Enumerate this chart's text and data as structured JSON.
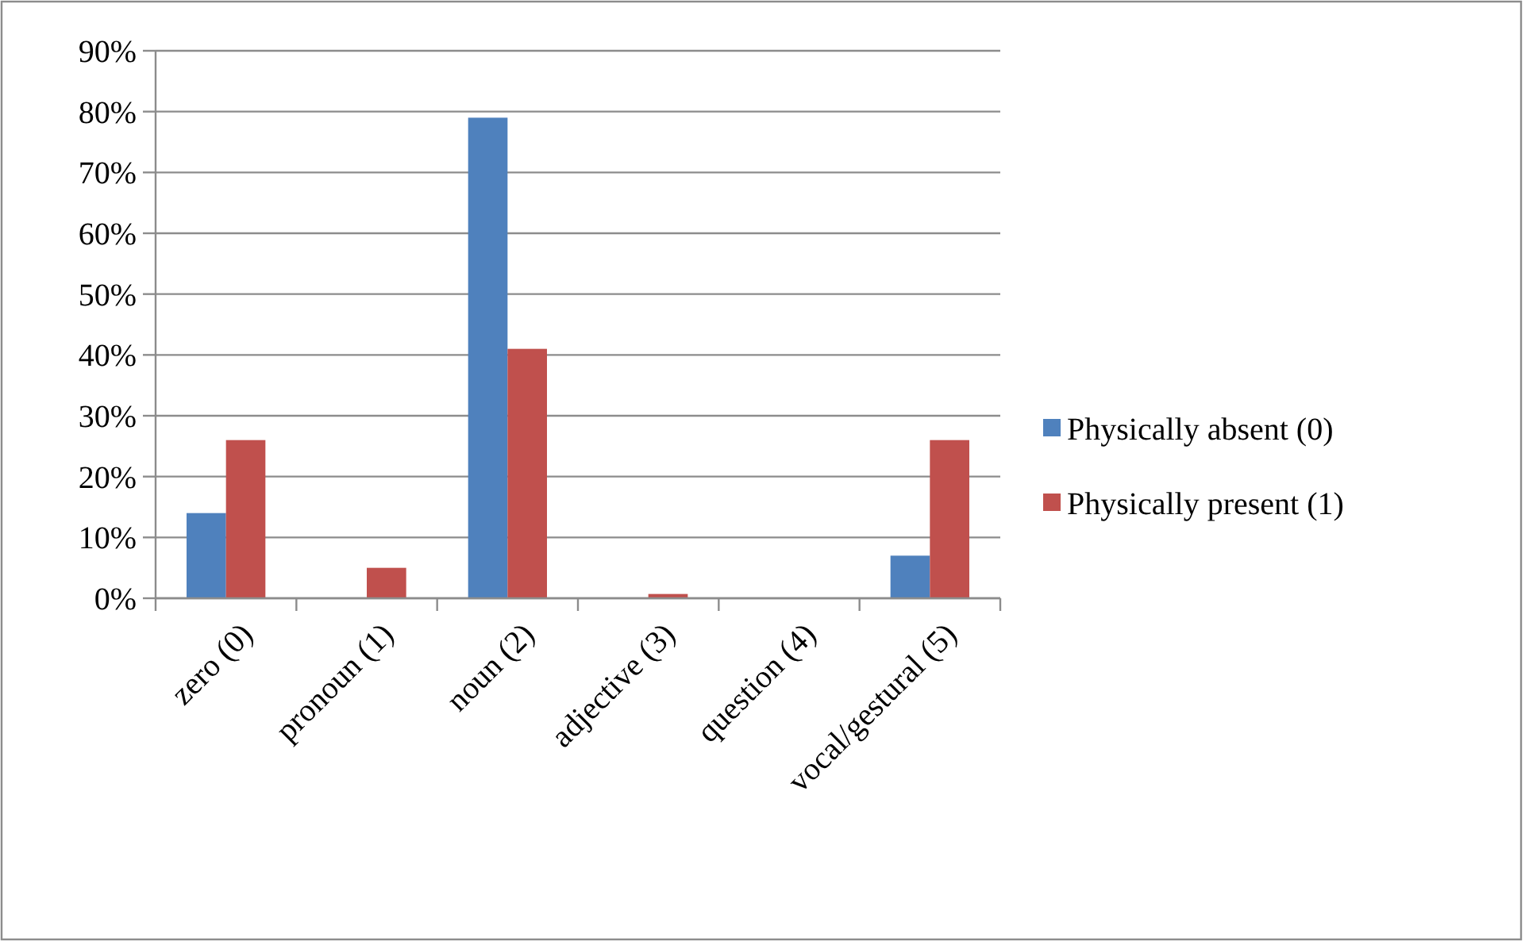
{
  "chart_data": {
    "type": "bar",
    "categories": [
      "zero (0)",
      "pronoun (1)",
      "noun (2)",
      "adjective (3)",
      "question (4)",
      "vocal/gestural (5)"
    ],
    "series": [
      {
        "name": "Physically absent (0)",
        "color": "#4f81bd",
        "values": [
          14,
          0,
          79,
          0,
          0,
          7
        ]
      },
      {
        "name": "Physically present (1)",
        "color": "#c0504d",
        "values": [
          26,
          5,
          41,
          0.7,
          0,
          26
        ]
      }
    ],
    "ylim": [
      0,
      90
    ],
    "yticks": [
      {
        "value": 0,
        "label": "0%"
      },
      {
        "value": 10,
        "label": "10%"
      },
      {
        "value": 20,
        "label": "20%"
      },
      {
        "value": 30,
        "label": "30%"
      },
      {
        "value": 40,
        "label": "40%"
      },
      {
        "value": 50,
        "label": "50%"
      },
      {
        "value": 60,
        "label": "60%"
      },
      {
        "value": 70,
        "label": "70%"
      },
      {
        "value": 80,
        "label": "80%"
      },
      {
        "value": 90,
        "label": "90%"
      }
    ],
    "grid": "y",
    "legend": "right"
  }
}
